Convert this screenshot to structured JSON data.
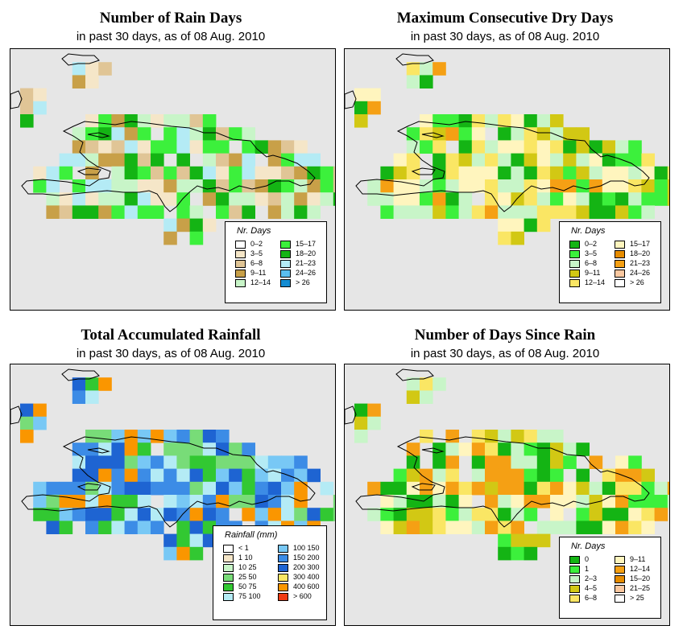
{
  "panels": [
    {
      "id": "rain-days",
      "title": "Number of Rain Days",
      "subtitle": "in past 30 days, as of  08 Aug. 2010",
      "legend_title": "Nr. Days",
      "legend": [
        {
          "label": "0–2",
          "color": "#ffffff"
        },
        {
          "label": "3–5",
          "color": "#f5e6c8"
        },
        {
          "label": "6–8",
          "color": "#e0c596"
        },
        {
          "label": "9–11",
          "color": "#c8a048"
        },
        {
          "label": "12–14",
          "color": "#c8f5c8"
        },
        {
          "label": "15–17",
          "color": "#3cf03c"
        },
        {
          "label": "18–20",
          "color": "#14b414"
        },
        {
          "label": "21–23",
          "color": "#b4ebf5"
        },
        {
          "label": "24–26",
          "color": "#5abef0"
        },
        {
          "label": "> 26",
          "color": "#148cd2"
        }
      ]
    },
    {
      "id": "dry-days",
      "title": "Maximum Consecutive Dry Days",
      "subtitle": "in past 30 days, as of  08 Aug. 2010",
      "legend_title": "Nr. Days",
      "legend": [
        {
          "label": "0–2",
          "color": "#14b414"
        },
        {
          "label": "3–5",
          "color": "#3cf03c"
        },
        {
          "label": "6–8",
          "color": "#c8f5c8"
        },
        {
          "label": "9–11",
          "color": "#d2c814"
        },
        {
          "label": "12–14",
          "color": "#fae664"
        },
        {
          "label": "15–17",
          "color": "#fff5be"
        },
        {
          "label": "18–20",
          "color": "#e68c00"
        },
        {
          "label": "21–23",
          "color": "#f5a014"
        },
        {
          "label": "24–26",
          "color": "#fac8a0"
        },
        {
          "label": "> 26",
          "color": "#ffffff"
        }
      ]
    },
    {
      "id": "rainfall",
      "title": "Total Accumulated Rainfall",
      "subtitle": "in past 30 days, as of  08 Aug. 2010",
      "legend_title": "Rainfall (mm)",
      "legend": [
        {
          "label": "< 1",
          "color": "#ffffff"
        },
        {
          "label": "1   10",
          "color": "#f5e6c8"
        },
        {
          "label": "10   25",
          "color": "#c8f5c8"
        },
        {
          "label": "25   50",
          "color": "#78dc78"
        },
        {
          "label": "50   75",
          "color": "#32c832"
        },
        {
          "label": "75  100",
          "color": "#b4ebf5"
        },
        {
          "label": "100  150",
          "color": "#78c8f5"
        },
        {
          "label": "150  200",
          "color": "#3c8ce6"
        },
        {
          "label": "200  300",
          "color": "#1e64d2"
        },
        {
          "label": "300  400",
          "color": "#fae664"
        },
        {
          "label": "400  600",
          "color": "#fa9600"
        },
        {
          "label": "> 600",
          "color": "#f03c14"
        }
      ]
    },
    {
      "id": "days-since-rain",
      "title": "Number of Days Since Rain",
      "subtitle": "in past 30 days, as of  08 Aug. 2010",
      "legend_title": "Nr. Days",
      "legend": [
        {
          "label": "0",
          "color": "#14b414"
        },
        {
          "label": "1",
          "color": "#3cf03c"
        },
        {
          "label": "2–3",
          "color": "#c8f5c8"
        },
        {
          "label": "4–5",
          "color": "#d2c814"
        },
        {
          "label": "6–8",
          "color": "#fae664"
        },
        {
          "label": "9–11",
          "color": "#fff5be"
        },
        {
          "label": "12–14",
          "color": "#f5a014"
        },
        {
          "label": "15–20",
          "color": "#e68c00"
        },
        {
          "label": "21–25",
          "color": "#fac8a0"
        },
        {
          "label": "> 25",
          "color": "#ffffff"
        }
      ]
    }
  ]
}
